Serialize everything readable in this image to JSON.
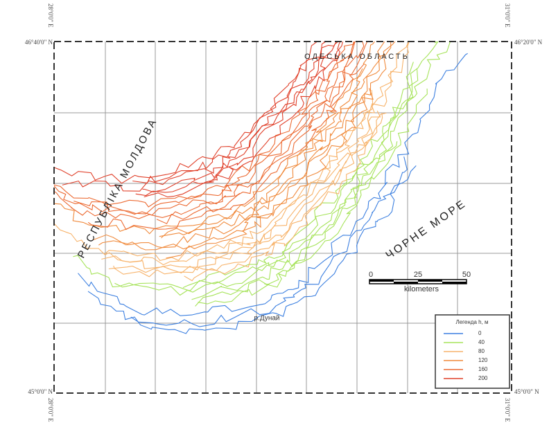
{
  "coordinates": {
    "top_left_lon": "28°0'0\" E",
    "top_right_lon": "31°0'0\" E",
    "bottom_left_lon": "28°0'0\" E",
    "bottom_right_lon": "31°0'0\" E",
    "left_top_lat": "46°40'0\" N",
    "right_top_lat": "46°20'0\" N",
    "left_bottom_lat": "45°0'0\" N",
    "right_bottom_lat": "45°0'0\" N"
  },
  "labels": {
    "region": "ОДЕСЬКА ОБЛАСТЬ",
    "country": "РЕСПУБЛІКА МОЛДОВА",
    "sea": "ЧОРНЕ МОРЕ",
    "river": "р.Дунай"
  },
  "scale_bar": {
    "ticks": [
      "0",
      "25",
      "50"
    ],
    "unit": "kilometers"
  },
  "legend": {
    "title": "Легенда h, м",
    "items": [
      {
        "label": "0",
        "color": "#3b7fe0"
      },
      {
        "label": "40",
        "color": "#a6e35a"
      },
      {
        "label": "80",
        "color": "#f7b36b"
      },
      {
        "label": "120",
        "color": "#f08a3c"
      },
      {
        "label": "160",
        "color": "#ec6a32"
      },
      {
        "label": "200",
        "color": "#e0402a"
      }
    ]
  }
}
